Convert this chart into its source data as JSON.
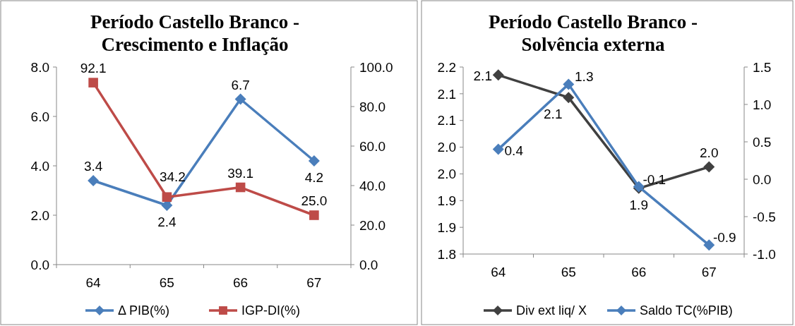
{
  "chart_data": [
    {
      "type": "line",
      "title": "Período Castello Branco - Crescimento e Inflação",
      "categories": [
        "64",
        "65",
        "66",
        "67"
      ],
      "series": [
        {
          "name": "Δ PIB(%)",
          "color": "#4a7ebb",
          "values": [
            3.4,
            2.4,
            6.7,
            4.2
          ],
          "value_labels": [
            "3.4",
            "2.4",
            "6.7",
            "4.2"
          ],
          "marker": "diamond"
        },
        {
          "name": "IGP-DI(%)",
          "color": "#be4b48",
          "values": [
            92.1,
            34.2,
            39.1,
            25.0
          ],
          "value_labels": [
            "92.1",
            "34.2",
            "39.1",
            "25.0"
          ],
          "axis": "y2",
          "marker": "square"
        }
      ],
      "ylim": [
        0,
        8
      ],
      "yticks": [
        {
          "value": 0,
          "label": "0.0"
        },
        {
          "value": 2,
          "label": "2.0"
        },
        {
          "value": 4,
          "label": "4.0"
        },
        {
          "value": 6,
          "label": "6.0"
        },
        {
          "value": 8,
          "label": "8.0"
        }
      ],
      "y2lim": [
        0,
        100
      ],
      "y2ticks": [
        {
          "value": 0,
          "label": "0.0"
        },
        {
          "value": 20,
          "label": "20.0"
        },
        {
          "value": 40,
          "label": "40.0"
        },
        {
          "value": 60,
          "label": "60.0"
        },
        {
          "value": 80,
          "label": "80.0"
        },
        {
          "value": 100,
          "label": "100.0"
        }
      ],
      "legend": "bottom"
    },
    {
      "type": "line",
      "title": "Período Castello Branco - Solvência externa",
      "categories": [
        "64",
        "65",
        "66",
        "67"
      ],
      "series": [
        {
          "name": "Div ext liq/ X",
          "color": "#404040",
          "values": [
            2.135,
            2.093,
            1.923,
            1.963
          ],
          "value_labels": [
            "2.1",
            "2.1",
            "1.9",
            "2.0"
          ],
          "marker": "diamond"
        },
        {
          "name": "Saldo TC(%PIB)",
          "color": "#4a7ebb",
          "values": [
            0.4,
            1.27,
            -0.1,
            -0.88
          ],
          "value_labels": [
            "0.4",
            "1.3",
            "-0.1",
            "-0.9"
          ],
          "axis": "y2",
          "marker": "diamond"
        }
      ],
      "ylim": [
        1.8,
        2.15
      ],
      "yticks": [
        {
          "value": 1.8,
          "label": "1.8"
        },
        {
          "value": 1.85,
          "label": "1.9"
        },
        {
          "value": 1.9,
          "label": "1.9"
        },
        {
          "value": 1.95,
          "label": "2.0"
        },
        {
          "value": 2.0,
          "label": "2.0"
        },
        {
          "value": 2.05,
          "label": "2.1"
        },
        {
          "value": 2.1,
          "label": "2.1"
        },
        {
          "value": 2.15,
          "label": "2.2"
        }
      ],
      "y2lim": [
        -1,
        1.5
      ],
      "y2ticks": [
        {
          "value": -1,
          "label": "-1.0"
        },
        {
          "value": -0.5,
          "label": "-0.5"
        },
        {
          "value": 0,
          "label": "0.0"
        },
        {
          "value": 0.5,
          "label": "0.5"
        },
        {
          "value": 1,
          "label": "1.0"
        },
        {
          "value": 1.5,
          "label": "1.5"
        }
      ],
      "legend": "bottom"
    }
  ]
}
